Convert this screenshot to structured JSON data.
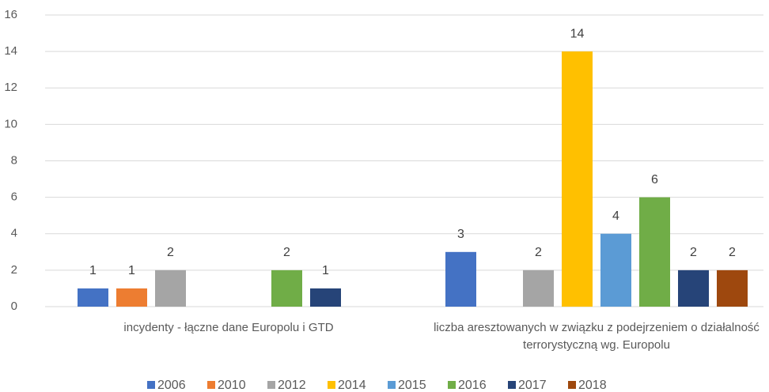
{
  "chart_data": {
    "type": "bar",
    "categories": [
      "incydenty - łączne dane Europolu i GTD",
      "liczba aresztowanych w związku z podejrzeniem o działalność terrorystyczną wg. Europolu"
    ],
    "series": [
      {
        "name": "2006",
        "color": "#4472c4",
        "values": [
          1,
          3
        ]
      },
      {
        "name": "2010",
        "color": "#ed7d31",
        "values": [
          1,
          null
        ]
      },
      {
        "name": "2012",
        "color": "#a5a5a5",
        "values": [
          2,
          2
        ]
      },
      {
        "name": "2014",
        "color": "#ffc000",
        "values": [
          null,
          14
        ]
      },
      {
        "name": "2015",
        "color": "#5b9bd5",
        "values": [
          null,
          4
        ]
      },
      {
        "name": "2016",
        "color": "#70ad47",
        "values": [
          2,
          6
        ]
      },
      {
        "name": "2017",
        "color": "#264478",
        "values": [
          1,
          2
        ]
      },
      {
        "name": "2018",
        "color": "#9e480e",
        "values": [
          null,
          2
        ]
      }
    ],
    "ylim": [
      0,
      16
    ],
    "yticks": [
      0,
      2,
      4,
      6,
      8,
      10,
      12,
      14,
      16
    ],
    "grid": true,
    "legend": "bottom"
  }
}
